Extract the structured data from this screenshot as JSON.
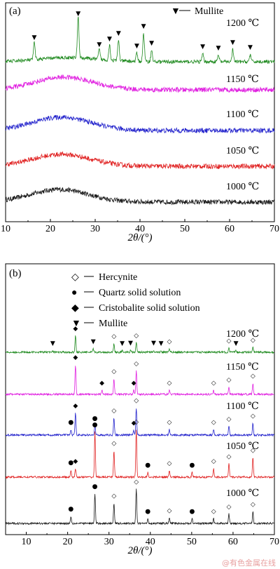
{
  "colors": {
    "series": [
      "#1a1a1a",
      "#e02020",
      "#2222cc",
      "#e020e0",
      "#1f8a1f"
    ],
    "frame": "#000000",
    "watermark": "#e8a0a0"
  },
  "watermark": "@有色金属在线",
  "chart_data": [
    {
      "panel_label": "(a)",
      "type": "line",
      "xlabel": "2θ/(°)",
      "xlim": [
        10,
        70
      ],
      "x_ticks": [
        "10",
        "20",
        "30",
        "40",
        "50",
        "60",
        "70"
      ],
      "legend": [
        {
          "symbol": "▼",
          "label": "Mullite"
        }
      ],
      "series": [
        {
          "name": "1000 ℃",
          "color": "#1a1a1a",
          "profile": "amorphous",
          "hump_center": 22,
          "hump_height": 0.9,
          "noise": 0.35,
          "peaks": []
        },
        {
          "name": "1050 ℃",
          "color": "#e02020",
          "profile": "amorphous",
          "hump_center": 22.5,
          "hump_height": 0.85,
          "noise": 0.35,
          "peaks": []
        },
        {
          "name": "1100 ℃",
          "color": "#2222cc",
          "profile": "amorphous",
          "hump_center": 22.5,
          "hump_height": 0.95,
          "noise": 0.35,
          "peaks": []
        },
        {
          "name": "1150 ℃",
          "color": "#e020e0",
          "profile": "amorphous",
          "hump_center": 23,
          "hump_height": 0.9,
          "noise": 0.35,
          "peaks": []
        },
        {
          "name": "1200 ℃",
          "color": "#1f8a1f",
          "profile": "crystalline",
          "hump_center": 24,
          "hump_height": 0.3,
          "noise": 0.25,
          "peaks": [
            {
              "x": 16.4,
              "h": 1.2,
              "m": "mullite"
            },
            {
              "x": 26.2,
              "h": 2.9,
              "m": "mullite"
            },
            {
              "x": 30.9,
              "h": 0.7,
              "m": "mullite"
            },
            {
              "x": 33.2,
              "h": 1.1,
              "m": "mullite"
            },
            {
              "x": 35.2,
              "h": 1.5,
              "m": "mullite"
            },
            {
              "x": 39.3,
              "h": 0.6,
              "m": "mullite"
            },
            {
              "x": 40.8,
              "h": 2.0,
              "m": "mullite"
            },
            {
              "x": 42.6,
              "h": 0.8,
              "m": "mullite"
            },
            {
              "x": 54.0,
              "h": 0.55,
              "m": "mullite"
            },
            {
              "x": 57.5,
              "h": 0.45,
              "m": "mullite"
            },
            {
              "x": 60.7,
              "h": 0.85,
              "m": "mullite"
            },
            {
              "x": 64.6,
              "h": 0.5,
              "m": "mullite"
            }
          ]
        }
      ]
    },
    {
      "panel_label": "(b)",
      "type": "line",
      "xlabel": "2θ/(°)",
      "xlim": [
        5,
        70
      ],
      "x_ticks": [
        "10",
        "20",
        "30",
        "40",
        "50",
        "60",
        "70"
      ],
      "legend": [
        {
          "symbol": "◇",
          "label": "Hercynite"
        },
        {
          "symbol": "●",
          "label": "Quartz solid solution"
        },
        {
          "symbol": "◆",
          "label": "Cristobalite solid solution"
        },
        {
          "symbol": "▼",
          "label": "Mullite"
        }
      ],
      "series": [
        {
          "name": "1000 ℃",
          "color": "#1a1a1a",
          "profile": "crystalline",
          "hump_center": 0,
          "hump_height": 0,
          "noise": 0.12,
          "peaks": [
            {
              "x": 20.8,
              "h": 0.45,
              "m": "quartz"
            },
            {
              "x": 26.6,
              "h": 1.9,
              "m": "quartz"
            },
            {
              "x": 31.2,
              "h": 1.3,
              "m": "hercynite"
            },
            {
              "x": 36.6,
              "h": 2.2,
              "m": "hercynite"
            },
            {
              "x": 39.4,
              "h": 0.3,
              "m": "quartz"
            },
            {
              "x": 44.6,
              "h": 0.35,
              "m": "hercynite"
            },
            {
              "x": 50.1,
              "h": 0.3,
              "m": "quartz"
            },
            {
              "x": 55.3,
              "h": 0.3,
              "m": "hercynite"
            },
            {
              "x": 59.0,
              "h": 0.6,
              "m": "hercynite"
            },
            {
              "x": 64.8,
              "h": 0.75,
              "m": "hercynite"
            }
          ]
        },
        {
          "name": "1050 ℃",
          "color": "#e02020",
          "profile": "crystalline",
          "hump_center": 0,
          "hump_height": 0,
          "noise": 0.12,
          "peaks": [
            {
              "x": 20.8,
              "h": 0.45,
              "m": "quartz"
            },
            {
              "x": 21.9,
              "h": 0.55,
              "m": "cristobalite"
            },
            {
              "x": 26.6,
              "h": 2.9,
              "m": "quartz"
            },
            {
              "x": 31.2,
              "h": 1.7,
              "m": "hercynite"
            },
            {
              "x": 36.6,
              "h": 3.1,
              "m": "hercynite"
            },
            {
              "x": 39.4,
              "h": 0.3,
              "m": "quartz"
            },
            {
              "x": 44.6,
              "h": 0.4,
              "m": "hercynite"
            },
            {
              "x": 50.1,
              "h": 0.3,
              "m": "quartz"
            },
            {
              "x": 55.3,
              "h": 0.55,
              "m": "hercynite"
            },
            {
              "x": 59.0,
              "h": 0.85,
              "m": "hercynite"
            },
            {
              "x": 64.8,
              "h": 1.25,
              "m": "hercynite"
            }
          ]
        },
        {
          "name": "1100 ℃",
          "color": "#2222cc",
          "profile": "crystalline",
          "hump_center": 0,
          "hump_height": 0,
          "noise": 0.12,
          "peaks": [
            {
              "x": 20.8,
              "h": 0.35,
              "m": "quartz"
            },
            {
              "x": 21.9,
              "h": 1.4,
              "m": "cristobalite"
            },
            {
              "x": 26.6,
              "h": 0.6,
              "m": "quartz"
            },
            {
              "x": 31.2,
              "h": 1.1,
              "m": "hercynite"
            },
            {
              "x": 36.0,
              "h": 0.3,
              "m": "cristobalite"
            },
            {
              "x": 36.6,
              "h": 1.75,
              "m": "hercynite"
            },
            {
              "x": 44.6,
              "h": 0.35,
              "m": "hercynite"
            },
            {
              "x": 55.3,
              "h": 0.35,
              "m": "hercynite"
            },
            {
              "x": 59.0,
              "h": 0.55,
              "m": "hercynite"
            },
            {
              "x": 64.8,
              "h": 0.75,
              "m": "hercynite"
            }
          ]
        },
        {
          "name": "1150 ℃",
          "color": "#e020e0",
          "profile": "crystalline",
          "hump_center": 0,
          "hump_height": 0,
          "noise": 0.12,
          "peaks": [
            {
              "x": 21.9,
              "h": 1.9,
              "m": "cristobalite"
            },
            {
              "x": 28.3,
              "h": 0.25,
              "m": "cristobalite"
            },
            {
              "x": 31.2,
              "h": 1.0,
              "m": "hercynite"
            },
            {
              "x": 36.0,
              "h": 0.25,
              "m": "cristobalite"
            },
            {
              "x": 36.6,
              "h": 1.5,
              "m": "hercynite"
            },
            {
              "x": 44.6,
              "h": 0.25,
              "m": "hercynite"
            },
            {
              "x": 55.3,
              "h": 0.25,
              "m": "hercynite"
            },
            {
              "x": 59.0,
              "h": 0.45,
              "m": "hercynite"
            },
            {
              "x": 64.8,
              "h": 0.7,
              "m": "hercynite"
            }
          ]
        },
        {
          "name": "1200 ℃",
          "color": "#1f8a1f",
          "profile": "crystalline",
          "hump_center": 0,
          "hump_height": 0,
          "noise": 0.12,
          "peaks": [
            {
              "x": 16.4,
              "h": 0.1,
              "m": "mullite"
            },
            {
              "x": 21.9,
              "h": 1.05,
              "m": "cristobalite"
            },
            {
              "x": 26.2,
              "h": 0.2,
              "m": "mullite"
            },
            {
              "x": 31.2,
              "h": 0.55,
              "m": "hercynite"
            },
            {
              "x": 33.2,
              "h": 0.1,
              "m": "mullite"
            },
            {
              "x": 35.2,
              "h": 0.12,
              "m": "mullite"
            },
            {
              "x": 36.6,
              "h": 0.6,
              "m": "hercynite"
            },
            {
              "x": 40.8,
              "h": 0.12,
              "m": "mullite"
            },
            {
              "x": 42.6,
              "h": 0.1,
              "m": "mullite"
            },
            {
              "x": 44.6,
              "h": 0.2,
              "m": "hercynite"
            },
            {
              "x": 59.0,
              "h": 0.25,
              "m": "hercynite"
            },
            {
              "x": 60.7,
              "h": 0.1,
              "m": "mullite"
            },
            {
              "x": 64.8,
              "h": 0.3,
              "m": "hercynite"
            }
          ]
        }
      ]
    }
  ]
}
